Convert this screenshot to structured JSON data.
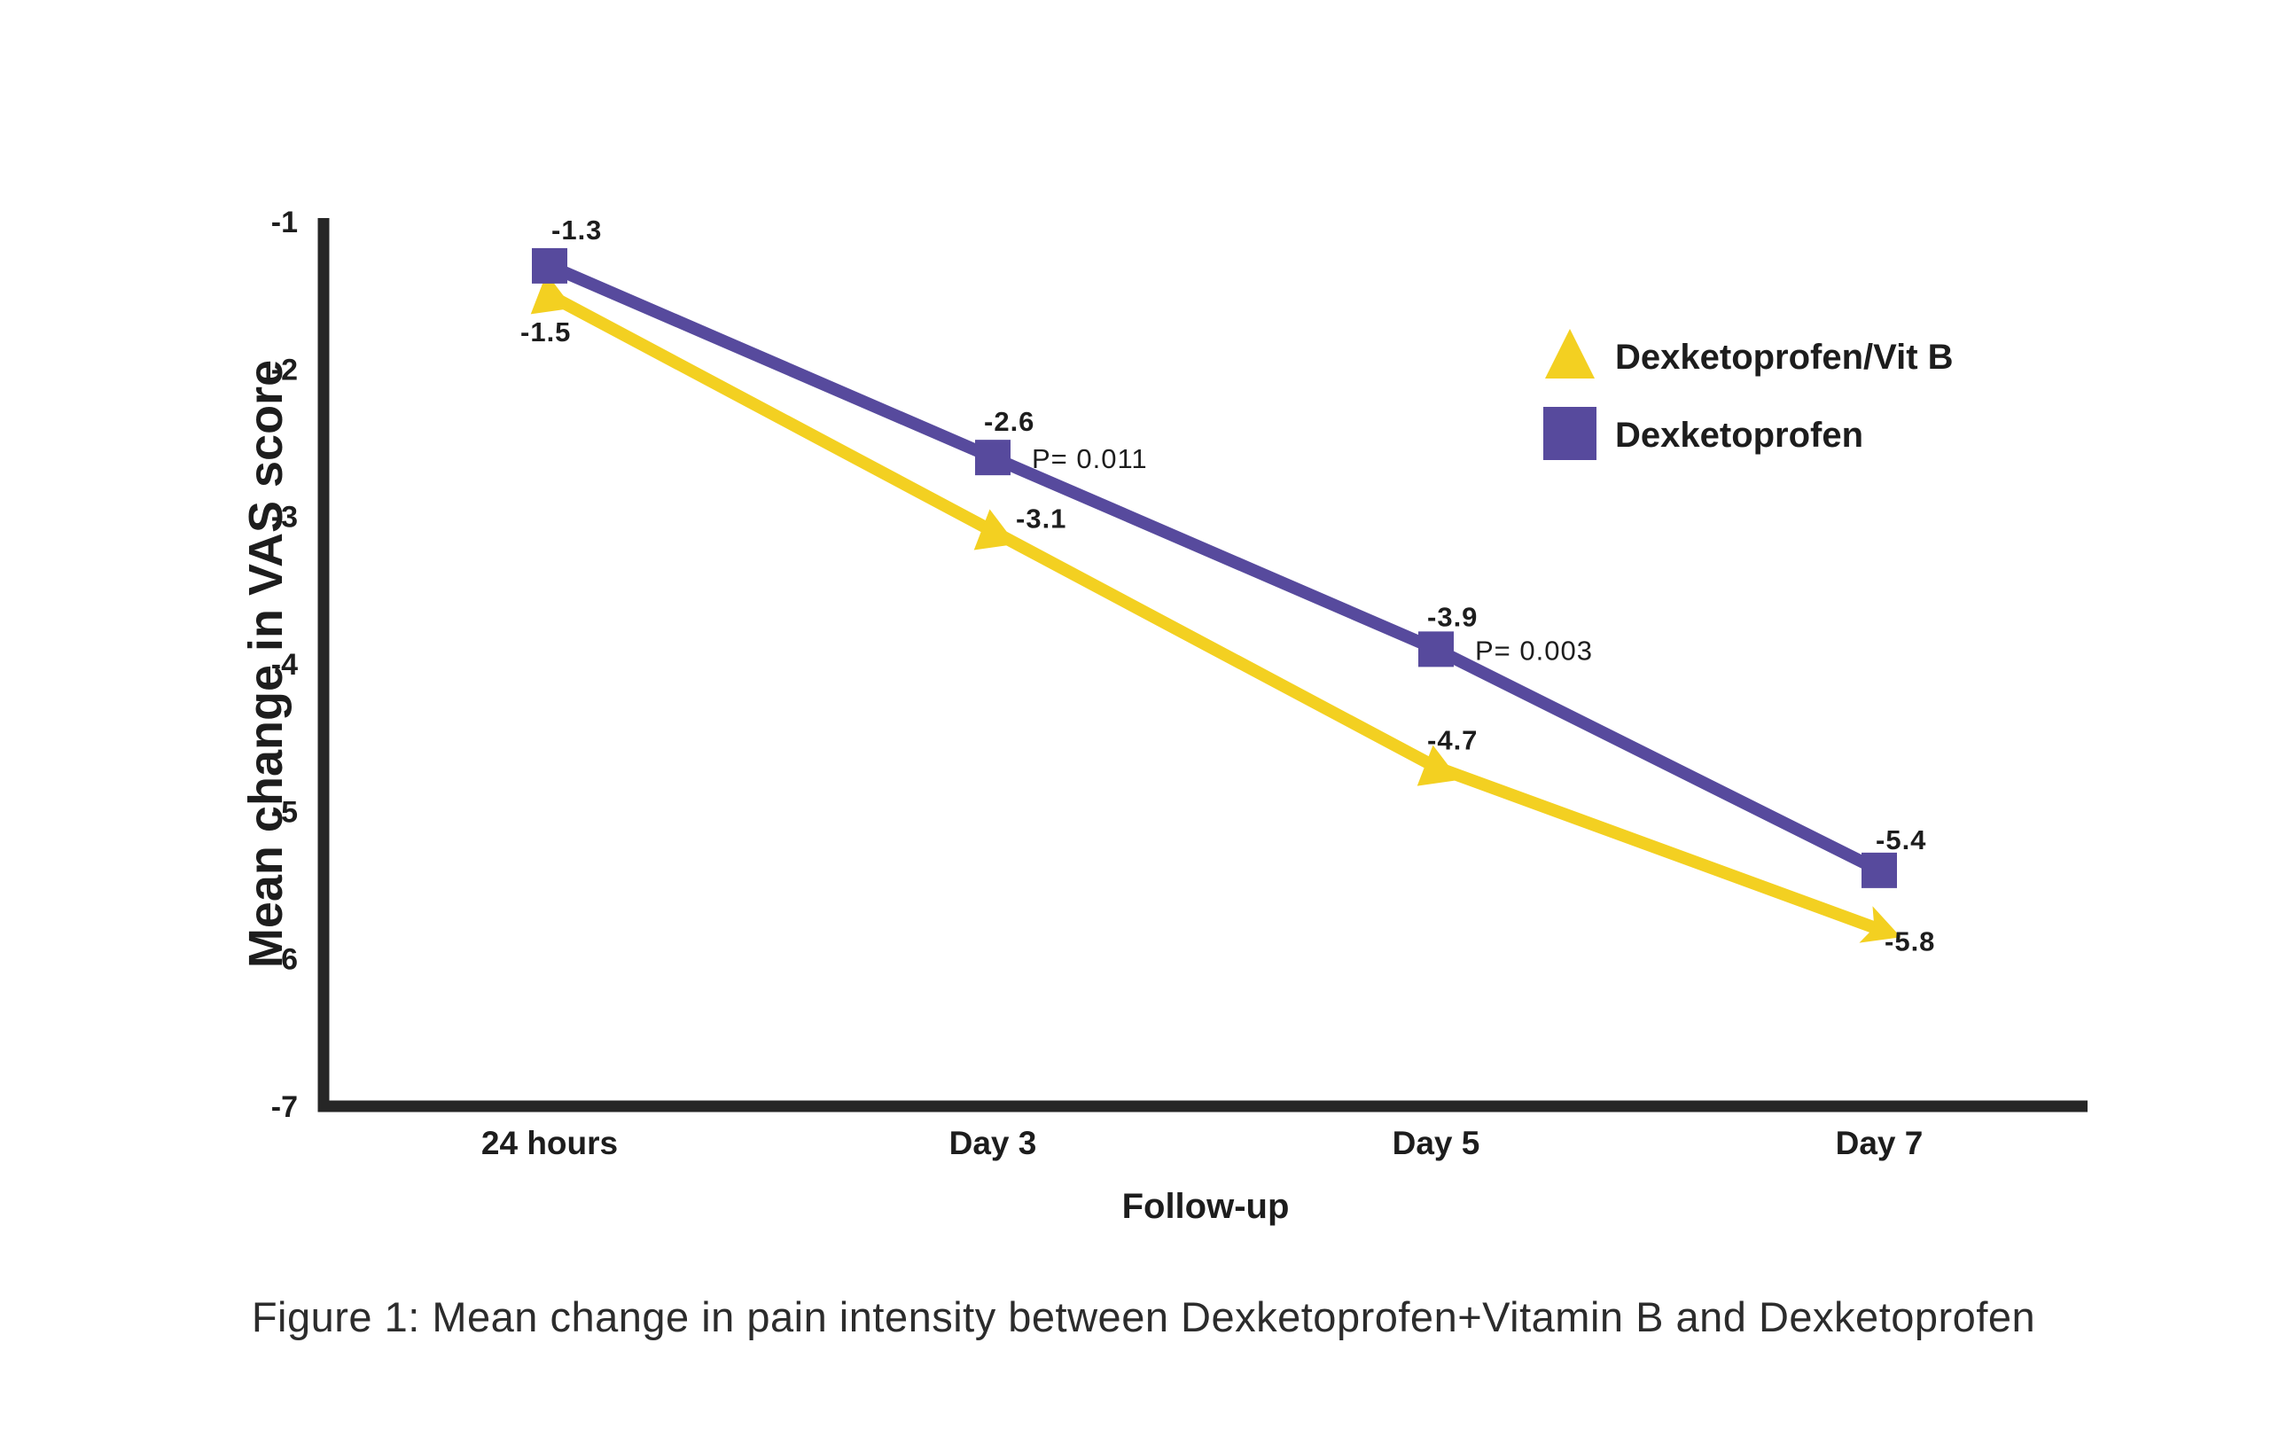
{
  "figure": {
    "caption": "Figure 1: Mean change in pain intensity between Dexketoprofen+Vitamin B and Dexketoprofen"
  },
  "colors": {
    "axis": "#262626",
    "text": "#1d1d1d",
    "background": "#ffffff",
    "vitb_yellow": "#F3D021",
    "dexketoprofen_purple": "#574A9D"
  },
  "chart_data": {
    "type": "line",
    "x_categories": [
      "24 hours",
      "Day 3",
      "Day 5",
      "Day 7"
    ],
    "xlabel": "Follow-up",
    "ylabel": "Mean change in VAS score",
    "ylim": [
      -7,
      -1
    ],
    "yticks": [
      "-1",
      "-2",
      "-3",
      "-4",
      "-5",
      "-6",
      "-7"
    ],
    "grid": false,
    "legend_position": "upper-right",
    "series": [
      {
        "name": "Dexketoprofen/Vit B",
        "marker": "triangle",
        "color": "#F3D021",
        "values": [
          -1.5,
          -3.1,
          -4.7,
          -5.8
        ],
        "labels": [
          "-1.5",
          "-3.1",
          "-4.7",
          "-5.8"
        ]
      },
      {
        "name": "Dexketoprofen",
        "marker": "square",
        "color": "#574A9D",
        "values": [
          -1.3,
          -2.6,
          -3.9,
          -5.4
        ],
        "labels": [
          "-1.3",
          "-2.6",
          "-3.9",
          "-5.4"
        ]
      }
    ],
    "annotations": [
      {
        "text": "P= 0.011",
        "x_index": 1,
        "series": "Dexketoprofen"
      },
      {
        "text": "P= 0.003",
        "x_index": 2,
        "series": "Dexketoprofen"
      }
    ]
  }
}
